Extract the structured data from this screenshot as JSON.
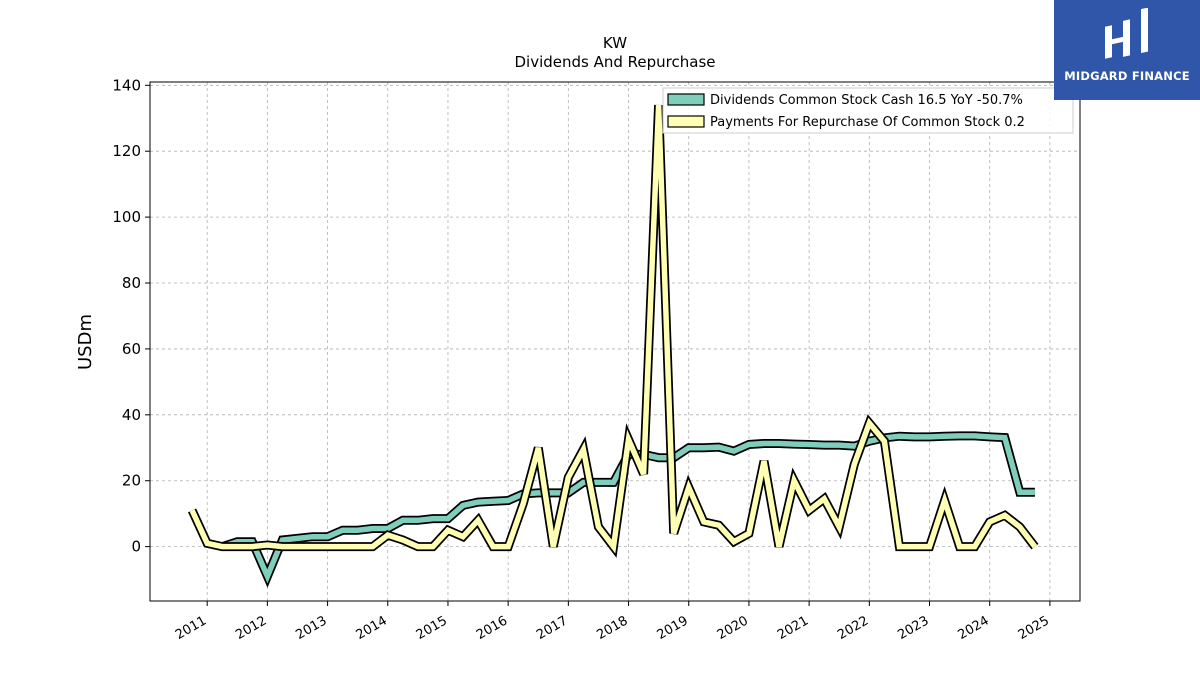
{
  "chart_data": {
    "type": "line",
    "ticker": "KW",
    "title": "Dividends And Repurchase",
    "ylabel": "USDm",
    "xlabel": "",
    "ylim": [
      -16.5,
      141
    ],
    "yticks": [
      0,
      20,
      40,
      60,
      80,
      100,
      120,
      140
    ],
    "xlim": [
      2010.05,
      2025.5
    ],
    "xtick_labels": [
      "2011",
      "2012",
      "2013",
      "2014",
      "2015",
      "2016",
      "2017",
      "2018",
      "2019",
      "2020",
      "2021",
      "2022",
      "2023",
      "2024",
      "2025"
    ],
    "grid": true,
    "legend_position": "top-right",
    "series": [
      {
        "name": "Dividends Common Stock Cash  16.5 YoY -50.7%",
        "color": "#7fcdbb",
        "points": [
          [
            2011.25,
            0
          ],
          [
            2011.5,
            1.5
          ],
          [
            2011.75,
            1.5
          ],
          [
            2012.0,
            -9
          ],
          [
            2012.25,
            2
          ],
          [
            2012.5,
            2.5
          ],
          [
            2012.75,
            3
          ],
          [
            2013.0,
            3
          ],
          [
            2013.25,
            5
          ],
          [
            2013.5,
            5
          ],
          [
            2013.75,
            5.5
          ],
          [
            2014.0,
            5.5
          ],
          [
            2014.25,
            8
          ],
          [
            2014.5,
            8
          ],
          [
            2014.75,
            8.5
          ],
          [
            2015.0,
            8.5
          ],
          [
            2015.25,
            12.5
          ],
          [
            2015.5,
            13.5
          ],
          [
            2015.75,
            13.8
          ],
          [
            2016.0,
            14
          ],
          [
            2016.25,
            16
          ],
          [
            2016.5,
            16.3
          ],
          [
            2016.75,
            16.3
          ],
          [
            2017.0,
            16.3
          ],
          [
            2017.25,
            19.5
          ],
          [
            2017.5,
            19.5
          ],
          [
            2017.75,
            19.5
          ],
          [
            2018.0,
            28
          ],
          [
            2018.25,
            28
          ],
          [
            2018.5,
            27
          ],
          [
            2018.75,
            27
          ],
          [
            2019.0,
            30
          ],
          [
            2019.25,
            30
          ],
          [
            2019.5,
            30.2
          ],
          [
            2019.75,
            29
          ],
          [
            2020.0,
            31
          ],
          [
            2020.25,
            31.3
          ],
          [
            2020.5,
            31.3
          ],
          [
            2020.75,
            31.1
          ],
          [
            2021.0,
            31
          ],
          [
            2021.25,
            30.8
          ],
          [
            2021.5,
            30.8
          ],
          [
            2021.75,
            30.5
          ],
          [
            2022.0,
            32
          ],
          [
            2022.25,
            33
          ],
          [
            2022.5,
            33.5
          ],
          [
            2022.75,
            33.3
          ],
          [
            2023.0,
            33.3
          ],
          [
            2023.25,
            33.5
          ],
          [
            2023.5,
            33.6
          ],
          [
            2023.75,
            33.6
          ],
          [
            2024.0,
            33.3
          ],
          [
            2024.25,
            33.1
          ],
          [
            2024.5,
            16.5
          ],
          [
            2024.75,
            16.5
          ]
        ]
      },
      {
        "name": "Payments For Repurchase Of Common Stock  0.2",
        "color": "#ffffb3",
        "points": [
          [
            2010.75,
            11
          ],
          [
            2011.0,
            1
          ],
          [
            2011.25,
            0
          ],
          [
            2011.5,
            0
          ],
          [
            2011.75,
            0
          ],
          [
            2012.0,
            0.5
          ],
          [
            2012.25,
            0
          ],
          [
            2012.5,
            0
          ],
          [
            2012.75,
            0
          ],
          [
            2013.0,
            0
          ],
          [
            2013.25,
            0
          ],
          [
            2013.5,
            0
          ],
          [
            2013.75,
            0
          ],
          [
            2014.0,
            3.5
          ],
          [
            2014.25,
            2
          ],
          [
            2014.5,
            0
          ],
          [
            2014.75,
            0
          ],
          [
            2015.0,
            5
          ],
          [
            2015.25,
            3
          ],
          [
            2015.5,
            8
          ],
          [
            2015.75,
            0
          ],
          [
            2016.0,
            0
          ],
          [
            2016.25,
            13
          ],
          [
            2016.5,
            30
          ],
          [
            2016.75,
            0
          ],
          [
            2017.0,
            21
          ],
          [
            2017.25,
            29.5
          ],
          [
            2017.5,
            6
          ],
          [
            2017.75,
            0
          ],
          [
            2018.0,
            32.5
          ],
          [
            2018.25,
            22
          ],
          [
            2018.5,
            134
          ],
          [
            2018.75,
            4
          ],
          [
            2019.0,
            18
          ],
          [
            2019.25,
            7.5
          ],
          [
            2019.5,
            6.5
          ],
          [
            2019.75,
            1.5
          ],
          [
            2020.0,
            4
          ],
          [
            2020.25,
            26
          ],
          [
            2020.5,
            0
          ],
          [
            2020.75,
            20
          ],
          [
            2021.0,
            11
          ],
          [
            2021.25,
            14.5
          ],
          [
            2021.5,
            6
          ],
          [
            2021.75,
            25
          ],
          [
            2022.0,
            37.5
          ],
          [
            2022.25,
            32
          ],
          [
            2022.5,
            0
          ],
          [
            2022.75,
            0
          ],
          [
            2023.0,
            0
          ],
          [
            2023.25,
            14
          ],
          [
            2023.5,
            0
          ],
          [
            2023.75,
            0
          ],
          [
            2024.0,
            7.5
          ],
          [
            2024.25,
            9.5
          ],
          [
            2024.5,
            6
          ],
          [
            2024.75,
            0
          ]
        ]
      }
    ]
  },
  "logo": {
    "text": "MIDGARD FINANCE",
    "background": "#2f56a8"
  }
}
